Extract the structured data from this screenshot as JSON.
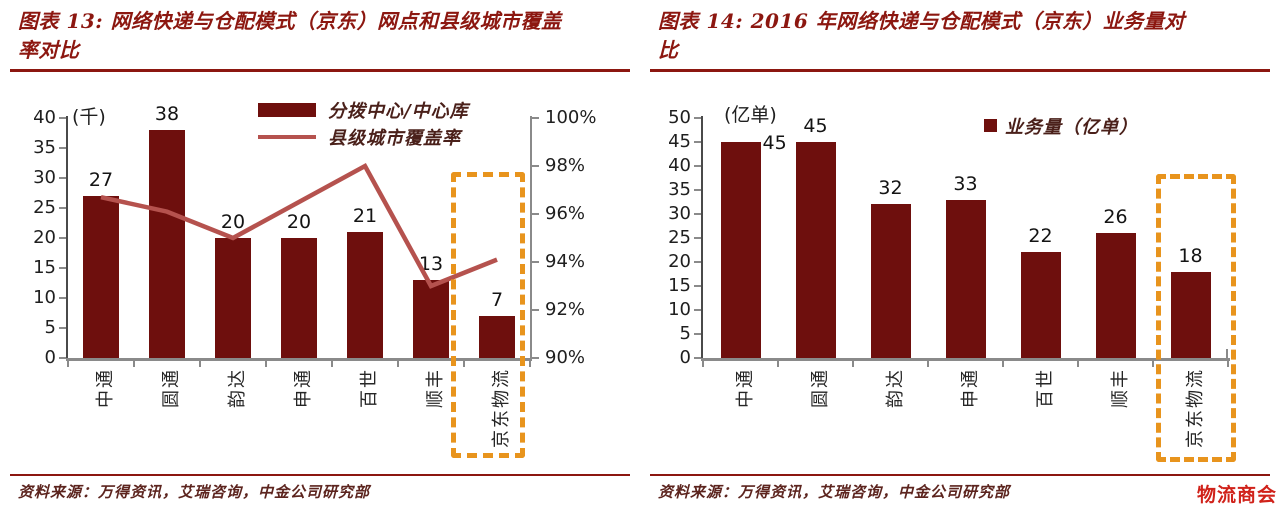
{
  "badge": "物流商会",
  "colors": {
    "bar": "#6e0f0d",
    "line": "#b5524e",
    "title_red": "#8c1710",
    "highlight_orange": "#e8941d",
    "source_text": "#5c241e",
    "badge_red": "#d0221a"
  },
  "chart_data": [
    {
      "type": "bar",
      "title": "图表 13: 网络快递与仓配模式（京东）网点和县级城市覆盖率对比",
      "categories": [
        "中通",
        "圆通",
        "韵达",
        "申通",
        "百世",
        "顺丰",
        "京东物流"
      ],
      "series": [
        {
          "name": "分拨中心/中心库",
          "type": "bar",
          "axis": "left",
          "values": [
            27,
            38,
            20,
            20,
            21,
            13,
            7
          ]
        },
        {
          "name": "县级城市覆盖率",
          "type": "line",
          "axis": "right",
          "unit": "%",
          "values": [
            96.7,
            96.1,
            95.0,
            96.5,
            98.0,
            93.0,
            94.1
          ]
        }
      ],
      "left_axis": {
        "label": "(千)",
        "min": 0,
        "max": 40,
        "step": 5
      },
      "right_axis": {
        "min": 90,
        "max": 100,
        "step": 2,
        "tick_labels": [
          "90%",
          "92%",
          "94%",
          "96%",
          "98%",
          "100%"
        ]
      },
      "grid": false,
      "legend_position": "top-center",
      "highlight_category": "京东物流",
      "source": "资料来源：万得资讯，艾瑞咨询，中金公司研究部"
    },
    {
      "type": "bar",
      "title": "图表 14: 2016 年网络快递与仓配模式（京东）业务量对比",
      "categories": [
        "中通",
        "圆通",
        "韵达",
        "申通",
        "百世",
        "顺丰",
        "京东物流"
      ],
      "series": [
        {
          "name": "业务量（亿单）",
          "type": "bar",
          "axis": "left",
          "values": [
            45,
            45,
            32,
            33,
            22,
            26,
            18
          ]
        }
      ],
      "left_axis": {
        "label": "(亿单)",
        "min": 0,
        "max": 50,
        "step": 5
      },
      "grid": false,
      "legend_position": "top-center",
      "highlight_category": "京东物流",
      "source": "资料来源：万得资讯，艾瑞咨询，中金公司研究部"
    }
  ]
}
